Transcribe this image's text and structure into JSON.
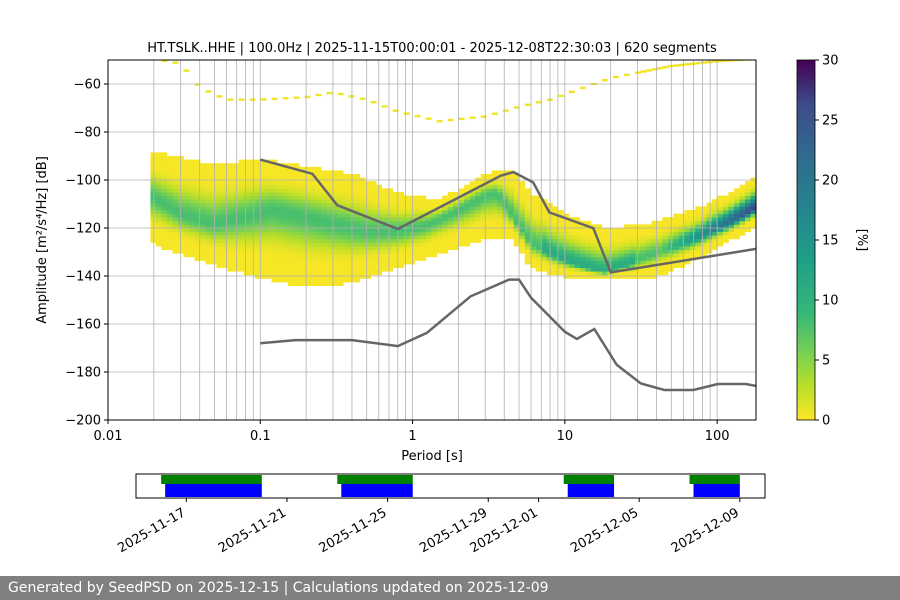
{
  "footer": {
    "text": "Generated by SeedPSD on 2025-12-15 | Calculations updated on 2025-12-09",
    "background": "#808080"
  },
  "chart_data": [
    {
      "type": "heatmap",
      "title": "HT.TSLK..HHE | 100.0Hz | 2025-11-15T00:00:01 - 2025-12-08T22:30:03 | 620 segments",
      "xlabel": "Period [s]",
      "ylabel": "Amplitude [m²/s⁴/Hz] [dB]",
      "x_scale": "log",
      "xlim": [
        0.01,
        180
      ],
      "ylim": [
        -200,
        -50
      ],
      "x_ticks": [
        0.01,
        0.1,
        1,
        10,
        100
      ],
      "x_tick_labels": [
        "0.01",
        "0.1",
        "1",
        "10",
        "100"
      ],
      "y_ticks": [
        -200,
        -180,
        -160,
        -140,
        -120,
        -100,
        -80,
        -60
      ],
      "y_tick_labels": [
        "−200",
        "−180",
        "−160",
        "−140",
        "−120",
        "−100",
        "−80",
        "−60"
      ],
      "grid": true,
      "colorbar": {
        "label": "[%]",
        "range": [
          0,
          30
        ],
        "ticks": [
          "0",
          "5",
          "10",
          "15",
          "20",
          "25",
          "30"
        ],
        "colormap": "viridis_r"
      },
      "dominant_mode": [
        [
          0.02,
          -108
        ],
        [
          0.03,
          -115
        ],
        [
          0.05,
          -119
        ],
        [
          0.08,
          -116
        ],
        [
          0.12,
          -113
        ],
        [
          0.2,
          -116
        ],
        [
          0.3,
          -119
        ],
        [
          0.5,
          -122
        ],
        [
          0.8,
          -122
        ],
        [
          1.2,
          -120
        ],
        [
          2,
          -113
        ],
        [
          3,
          -107
        ],
        [
          3.6,
          -106
        ],
        [
          4.5,
          -115
        ],
        [
          6,
          -127
        ],
        [
          8,
          -131
        ],
        [
          10,
          -134
        ],
        [
          14,
          -137
        ],
        [
          18,
          -139
        ],
        [
          25,
          -136
        ],
        [
          40,
          -131
        ],
        [
          70,
          -125
        ],
        [
          120,
          -118
        ],
        [
          180,
          -112
        ]
      ],
      "spread_upper": [
        [
          0.02,
          -89
        ],
        [
          0.05,
          -94
        ],
        [
          0.1,
          -92
        ],
        [
          0.2,
          -95
        ],
        [
          0.4,
          -98
        ],
        [
          0.8,
          -106
        ],
        [
          1.5,
          -109
        ],
        [
          3,
          -98
        ],
        [
          4.5,
          -96
        ],
        [
          6,
          -106
        ],
        [
          10,
          -115
        ],
        [
          15,
          -119
        ],
        [
          20,
          -121
        ],
        [
          40,
          -118
        ],
        [
          70,
          -113
        ],
        [
          120,
          -106
        ],
        [
          180,
          -99
        ]
      ],
      "spread_lower": [
        [
          0.02,
          -126
        ],
        [
          0.05,
          -135
        ],
        [
          0.1,
          -140
        ],
        [
          0.2,
          -144
        ],
        [
          0.4,
          -142
        ],
        [
          0.8,
          -136
        ],
        [
          1.5,
          -130
        ],
        [
          3,
          -124
        ],
        [
          4.5,
          -124
        ],
        [
          6,
          -136
        ],
        [
          10,
          -140
        ],
        [
          15,
          -141
        ],
        [
          20,
          -141
        ],
        [
          40,
          -140
        ],
        [
          70,
          -133
        ],
        [
          120,
          -125
        ],
        [
          180,
          -118
        ]
      ],
      "sparse_upper_trace": [
        [
          0.02,
          -50
        ],
        [
          0.03,
          -52
        ],
        [
          0.04,
          -62
        ],
        [
          0.06,
          -67
        ],
        [
          0.1,
          -67
        ],
        [
          0.2,
          -66
        ],
        [
          0.3,
          -64
        ],
        [
          0.5,
          -67
        ],
        [
          0.8,
          -72
        ],
        [
          1.5,
          -76
        ],
        [
          3,
          -74
        ],
        [
          5,
          -70
        ],
        [
          8,
          -67
        ],
        [
          12,
          -63
        ],
        [
          20,
          -58
        ],
        [
          50,
          -53
        ],
        [
          100,
          -51
        ],
        [
          180,
          -50
        ]
      ],
      "series": [
        {
          "x": [
            0.1,
            0.22,
            0.32,
            0.8,
            3.8,
            4.6,
            6.2,
            7.9,
            15.4,
            20,
            180
          ],
          "y": [
            -91.5,
            -97.4,
            -110.5,
            -120.4,
            -98.2,
            -96.7,
            -101.0,
            -113.5,
            -120.1,
            -138.5,
            -128.7
          ]
        },
        {
          "x": [
            0.1,
            0.17,
            0.4,
            0.8,
            1.24,
            2.4,
            4.3,
            5,
            6,
            10,
            12,
            15.6,
            21.9,
            31.6,
            45,
            70,
            101,
            154,
            180
          ],
          "y": [
            -168.0,
            -166.7,
            -166.7,
            -169.2,
            -163.7,
            -148.5,
            -141.5,
            -141.5,
            -149.1,
            -163.2,
            -166.2,
            -162.1,
            -177.0,
            -184.8,
            -187.5,
            -187.5,
            -185.0,
            -185.0,
            -185.8
          ]
        }
      ]
    },
    {
      "type": "timeline",
      "x_tick_labels": [
        "2025-11-17",
        "2025-11-21",
        "2025-11-25",
        "2025-11-29",
        "2025-12-01",
        "2025-12-05",
        "2025-12-09"
      ],
      "x_tick_dates": [
        "2025-11-17",
        "2025-11-21",
        "2025-11-25",
        "2025-11-29",
        "2025-12-01",
        "2025-12-05",
        "2025-12-09"
      ],
      "xlim": [
        "2025-11-15",
        "2025-12-10"
      ],
      "available": [
        [
          "2025-11-16",
          "2025-11-20"
        ],
        [
          "2025-11-23",
          "2025-11-26"
        ],
        [
          "2025-12-02",
          "2025-12-04"
        ],
        [
          "2025-12-07",
          "2025-12-09"
        ]
      ],
      "processed": [
        [
          "2025-11-16",
          "2025-11-20"
        ],
        [
          "2025-11-23",
          "2025-11-26"
        ],
        [
          "2025-12-02",
          "2025-12-04"
        ],
        [
          "2025-12-07",
          "2025-12-09"
        ]
      ],
      "colors": {
        "available": "#008000",
        "processed": "#0000ff"
      }
    }
  ]
}
